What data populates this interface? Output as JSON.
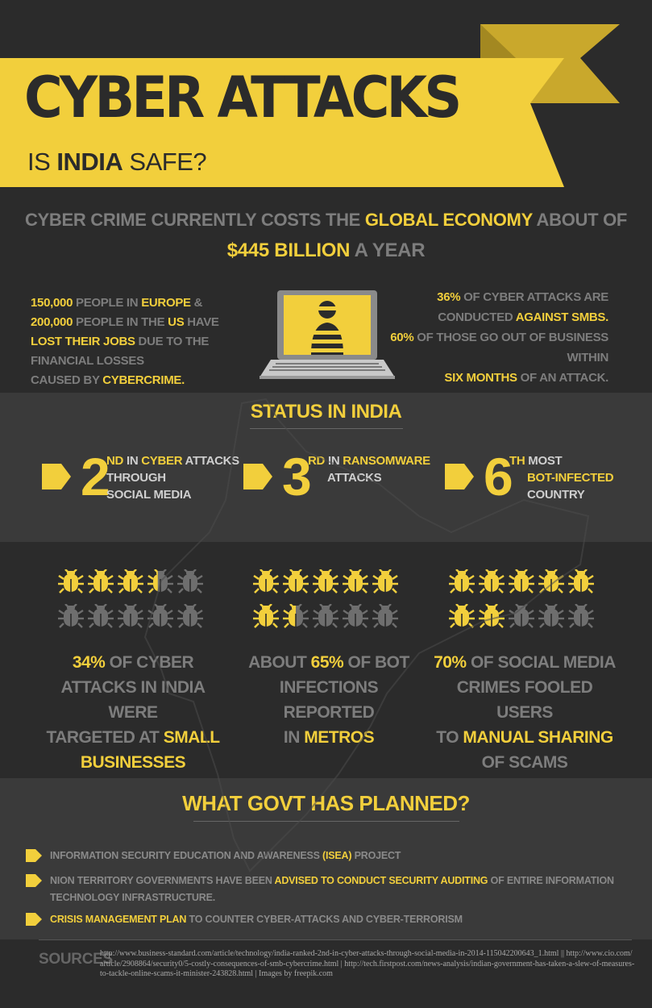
{
  "header": {
    "title": "CYBER ATTACKS",
    "subtitle_pre": "IS ",
    "subtitle_bold": "INDIA",
    "subtitle_post": " SAFE?"
  },
  "cost": {
    "line1_pre": "CYBER CRIME CURRENTLY COSTS THE ",
    "line1_highlight": "GLOBAL ECONOMY",
    "line1_post": " ABOUT OF",
    "line2_highlight": "$445 BILLION",
    "line2_post": " A YEAR"
  },
  "left_fact": {
    "a_num": "150,000",
    "a_text": " PEOPLE IN ",
    "a_place": "EUROPE",
    "a_amp": " &",
    "b_num": "200,000",
    "b_text": " PEOPLE IN THE ",
    "b_place": "US",
    "b_end": " HAVE",
    "c_highlight": "LOST THEIR JOBS",
    "c_text": " DUE TO THE FINANCIAL LOSSES",
    "d_text": "CAUSED BY ",
    "d_highlight": "CYBERCRIME."
  },
  "right_fact": {
    "a_num": "36%",
    "a_text": " OF CYBER ATTACKS ARE",
    "b_text": "CONDUCTED ",
    "b_highlight": "AGAINST SMBS.",
    "c_num": "60%",
    "c_text": " OF THOSE GO OUT OF BUSINESS WITHIN",
    "d_highlight": "SIX MONTHS",
    "d_text": " OF AN ATTACK."
  },
  "status": {
    "title": "STATUS IN INDIA",
    "ranks": [
      {
        "num": "2",
        "suffix": "ND",
        "l1_pre": " IN ",
        "l1_hl": "CYBER",
        "l1_post": " ATTACKS",
        "l2": "THROUGH",
        "l3": "SOCIAL MEDIA"
      },
      {
        "num": "3",
        "suffix": "RD",
        "l1_pre": " IN ",
        "l1_hl": "RANSOMWARE",
        "l1_post": "",
        "l2": "ATTACKS",
        "l3": ""
      },
      {
        "num": "6",
        "suffix": "TH",
        "l1_pre": " MOST",
        "l1_hl": "",
        "l1_post": "",
        "l2": "BOT-INFECTED",
        "l3": "COUNTRY"
      }
    ]
  },
  "bugs": [
    {
      "level": 0.34,
      "pct": "34%",
      "t1": " OF CYBER",
      "t2": "ATTACKS IN INDIA WERE",
      "t3_pre": "TARGETED AT ",
      "t3_hl": "SMALL",
      "t4_hl": "BUSINESSES",
      "t4_post": ""
    },
    {
      "level": 0.65,
      "pre": "ABOUT ",
      "pct": "65%",
      "t1": " OF BOT",
      "t2": "INFECTIONS REPORTED",
      "t3_pre": "IN ",
      "t3_hl": "METROS",
      "t4_hl": "",
      "t4_post": ""
    },
    {
      "level": 0.7,
      "pct": "70%",
      "t1": " OF SOCIAL MEDIA",
      "t2": "CRIMES FOOLED USERS",
      "t3_pre": "TO ",
      "t3_hl": "MANUAL SHARING",
      "t4_hl": "",
      "t4_post": "OF SCAMS"
    }
  ],
  "plans": {
    "title": "WHAT GOVT HAS PLANNED?",
    "items": [
      {
        "pre": "INFORMATION SECURITY EDUCATION AND AWARENESS ",
        "hl": "(ISEA)",
        "post": " PROJECT",
        "hl_first": false
      },
      {
        "pre": "NION TERRITORY GOVERNMENTS HAVE BEEN ",
        "hl": "ADVISED TO CONDUCT SECURITY AUDITING",
        "post": " OF ENTIRE INFORMATION TECHNOLOGY INFRASTRUCTURE.",
        "hl_first": false
      },
      {
        "pre": "",
        "hl": "CRISIS MANAGEMENT PLAN",
        "post": " TO COUNTER CYBER-ATTACKS AND CYBER-TERRORISM",
        "hl_first": true
      }
    ]
  },
  "sources": {
    "label": "SOURCES",
    "text": "http://www.business-standard.com/article/technology/india-ranked-2nd-in-cyber-attacks-through-social-media-in-2014-115042200643_1.html || http://www.cio.com/article/2908864/security0/5-costly-consequences-of-smb-cybercrime.html | http://tech.firstpost.com/news-analysis/indian-government-has-taken-a-slew-of-measures-to-tackle-online-scams-it-minister-243828.html | Images by freepik.com"
  },
  "colors": {
    "accent": "#f2cf3c",
    "dark": "#2b2b2b",
    "band": "#3a3a3a",
    "muted": "#7d7d7d"
  }
}
